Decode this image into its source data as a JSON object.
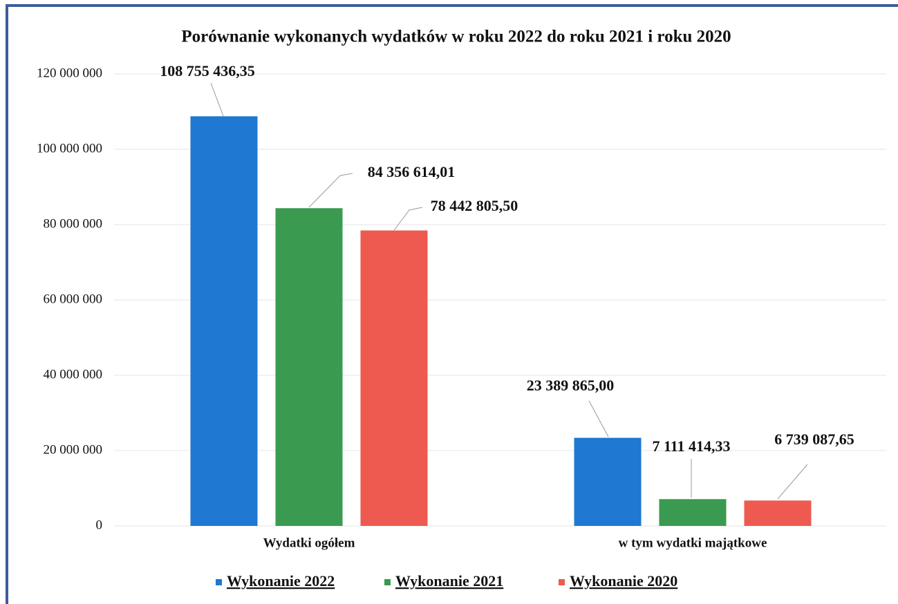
{
  "chart_data": {
    "type": "bar",
    "title": "Porównanie wykonanych wydatków w roku 2022 do roku 2021 i roku 2020",
    "categories": [
      "Wydatki ogółem",
      "w tym wydatki majątkowe"
    ],
    "series": [
      {
        "name": "Wykonanie 2022",
        "color": "#1f78d1",
        "values": [
          108755436.35,
          23389865.0
        ],
        "value_labels": [
          "108 755 436,35",
          "23 389 865,00"
        ]
      },
      {
        "name": "Wykonanie 2021",
        "color": "#3a9a4f",
        "values": [
          84356614.01,
          7111414.33
        ],
        "value_labels": [
          "84 356 614,01",
          "7 111 414,33"
        ]
      },
      {
        "name": "Wykonanie 2020",
        "color": "#ee5a50",
        "values": [
          78442805.5,
          6739087.65
        ],
        "value_labels": [
          "78 442 805,50",
          "6 739 087,65"
        ]
      }
    ],
    "ylim": [
      0,
      120000000
    ],
    "yticks": [
      0,
      {
        "value": 20000000,
        "label": "20 000 000"
      },
      {
        "value": 40000000,
        "label": "40 000 000"
      },
      {
        "value": 60000000,
        "label": "60 000 000"
      },
      {
        "value": 80000000,
        "label": "80 000 000"
      },
      {
        "value": 100000000,
        "label": "100 000 000"
      },
      {
        "value": 120000000,
        "label": "120 000 000"
      }
    ],
    "grid": true,
    "legend": "bottom"
  }
}
